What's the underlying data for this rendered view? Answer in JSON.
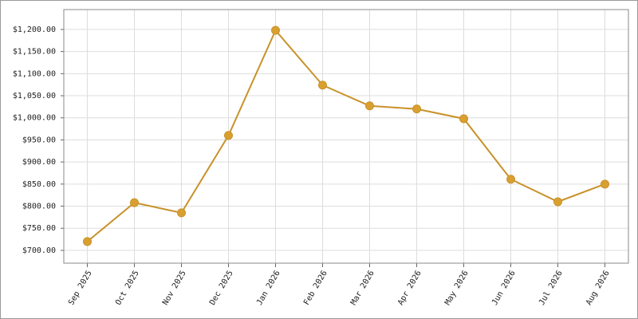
{
  "chart_data": {
    "type": "line",
    "categories": [
      "Sep 2025",
      "Oct 2025",
      "Nov 2025",
      "Dec 2025",
      "Jan 2026",
      "Feb 2026",
      "Mar 2026",
      "Apr 2026",
      "May 2026",
      "Jun 2026",
      "Jul 2026",
      "Aug 2026"
    ],
    "values": [
      720,
      808,
      785,
      960,
      1198,
      1074,
      1027,
      1020,
      998,
      861,
      810,
      850
    ],
    "color": "#c8922a",
    "marker_color": "#d9a030",
    "ylim": [
      671,
      1245
    ],
    "yticks": [
      {
        "value": 700,
        "label": "$700.00"
      },
      {
        "value": 750,
        "label": "$750.00"
      },
      {
        "value": 800,
        "label": "$800.00"
      },
      {
        "value": 850,
        "label": "$850.00"
      },
      {
        "value": 900,
        "label": "$900.00"
      },
      {
        "value": 950,
        "label": "$950.00"
      },
      {
        "value": 1000,
        "label": "$1,000.00"
      },
      {
        "value": 1050,
        "label": "$1,050.00"
      },
      {
        "value": 1100,
        "label": "$1,100.00"
      },
      {
        "value": 1150,
        "label": "$1,150.00"
      },
      {
        "value": 1200,
        "label": "$1,200.00"
      }
    ],
    "grid": true
  }
}
